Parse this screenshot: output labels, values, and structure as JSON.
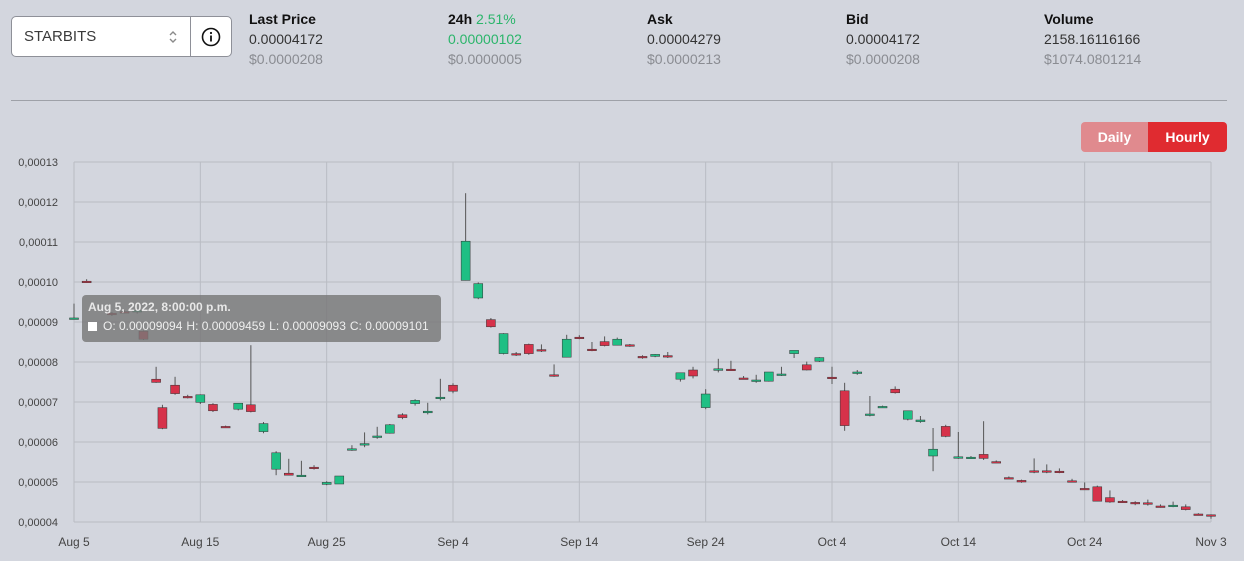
{
  "market_select": {
    "value": "STARBITS"
  },
  "stats": [
    {
      "label": "Last Price",
      "pct": "",
      "value": "0.00004172",
      "usd": "$0.0000208",
      "green": false
    },
    {
      "label": "24h",
      "pct": "2.51%",
      "value": "0.00000102",
      "usd": "$0.0000005",
      "green": true
    },
    {
      "label": "Ask",
      "pct": "",
      "value": "0.00004279",
      "usd": "$0.0000213",
      "green": false
    },
    {
      "label": "Bid",
      "pct": "",
      "value": "0.00004172",
      "usd": "$0.0000208",
      "green": false
    },
    {
      "label": "Volume",
      "pct": "",
      "value": "2158.16116166",
      "usd": "$1074.0801214",
      "green": false
    }
  ],
  "toggle": {
    "daily": "Daily",
    "hourly": "Hourly",
    "active": "hourly"
  },
  "colors": {
    "up": "#1fbf84",
    "down": "#d6324a",
    "wick": "#555",
    "grid": "#b9bcc3"
  },
  "tooltip": {
    "title": "Aug 5, 2022, 8:00:00 p.m.",
    "o": "O: 0.00009094",
    "h": "H: 0.00009459",
    "l": "L: 0.00009093",
    "c": "C: 0.00009101"
  },
  "chart_data": {
    "type": "candlestick",
    "ylim": [
      4e-05,
      0.00013
    ],
    "y_ticks": [
      "0,00013",
      "0,00012",
      "0,00011",
      "0,00010",
      "0,00009",
      "0,00008",
      "0,00007",
      "0,00006",
      "0,00005",
      "0,00004"
    ],
    "x_ticks": [
      "Aug 5",
      "Aug 15",
      "Aug 25",
      "Sep 4",
      "Sep 14",
      "Sep 24",
      "Oct 4",
      "Oct 14",
      "Oct 24",
      "Nov 3"
    ],
    "x_range_days": [
      0,
      90
    ],
    "candles": [
      {
        "d": 0,
        "o": 9.094e-05,
        "h": 9.459e-05,
        "l": 9.093e-05,
        "c": 9.101e-05
      },
      {
        "d": 1,
        "o": 0.0001002,
        "h": 0.0001007,
        "l": 9.98e-05,
        "c": 0.0001001
      },
      {
        "d": 3,
        "o": 9.22e-05,
        "h": 9.25e-05,
        "l": 9.15e-05,
        "c": 9.18e-05
      },
      {
        "d": 4,
        "o": 9.26e-05,
        "h": 9.29e-05,
        "l": 9.22e-05,
        "c": 9.23e-05
      },
      {
        "d": 5,
        "o": 9.25e-05,
        "h": 9.3e-05,
        "l": 9.21e-05,
        "c": 9.29e-05
      },
      {
        "d": 5.5,
        "o": 8.77e-05,
        "h": 8.79e-05,
        "l": 8.55e-05,
        "c": 8.57e-05
      },
      {
        "d": 6.5,
        "o": 7.57e-05,
        "h": 7.88e-05,
        "l": 7.48e-05,
        "c": 7.49e-05
      },
      {
        "d": 7,
        "o": 6.86e-05,
        "h": 6.93e-05,
        "l": 6.32e-05,
        "c": 6.34e-05
      },
      {
        "d": 8,
        "o": 7.42e-05,
        "h": 7.63e-05,
        "l": 7.18e-05,
        "c": 7.21e-05
      },
      {
        "d": 9,
        "o": 7.14e-05,
        "h": 7.18e-05,
        "l": 7.09e-05,
        "c": 7.12e-05
      },
      {
        "d": 10,
        "o": 6.99e-05,
        "h": 7.19e-05,
        "l": 6.95e-05,
        "c": 7.18e-05
      },
      {
        "d": 11,
        "o": 6.94e-05,
        "h": 6.97e-05,
        "l": 6.75e-05,
        "c": 6.78e-05
      },
      {
        "d": 12,
        "o": 6.39e-05,
        "h": 6.41e-05,
        "l": 6.36e-05,
        "c": 6.38e-05
      },
      {
        "d": 13,
        "o": 6.82e-05,
        "h": 6.97e-05,
        "l": 6.79e-05,
        "c": 6.97e-05
      },
      {
        "d": 14,
        "o": 6.93e-05,
        "h": 8.42e-05,
        "l": 6.74e-05,
        "c": 6.76e-05
      },
      {
        "d": 15,
        "o": 6.26e-05,
        "h": 6.5e-05,
        "l": 6.22e-05,
        "c": 6.46e-05
      },
      {
        "d": 16,
        "o": 5.32e-05,
        "h": 5.77e-05,
        "l": 5.17e-05,
        "c": 5.73e-05
      },
      {
        "d": 17,
        "o": 5.22e-05,
        "h": 5.58e-05,
        "l": 5.17e-05,
        "c": 5.17e-05
      },
      {
        "d": 18,
        "o": 5.17e-05,
        "h": 5.53e-05,
        "l": 5.14e-05,
        "c": 5.17e-05
      },
      {
        "d": 19,
        "o": 5.37e-05,
        "h": 5.42e-05,
        "l": 5.31e-05,
        "c": 5.35e-05
      },
      {
        "d": 20,
        "o": 4.94e-05,
        "h": 5.02e-05,
        "l": 4.92e-05,
        "c": 4.99e-05
      },
      {
        "d": 21,
        "o": 4.95e-05,
        "h": 5.15e-05,
        "l": 4.95e-05,
        "c": 5.15e-05
      },
      {
        "d": 22,
        "o": 5.81e-05,
        "h": 5.92e-05,
        "l": 5.78e-05,
        "c": 5.83e-05
      },
      {
        "d": 23,
        "o": 5.93e-05,
        "h": 6.24e-05,
        "l": 5.87e-05,
        "c": 5.96e-05
      },
      {
        "d": 24,
        "o": 6.12e-05,
        "h": 6.38e-05,
        "l": 6.08e-05,
        "c": 6.15e-05
      },
      {
        "d": 25,
        "o": 6.22e-05,
        "h": 6.45e-05,
        "l": 6.21e-05,
        "c": 6.43e-05
      },
      {
        "d": 26,
        "o": 6.68e-05,
        "h": 6.72e-05,
        "l": 6.57e-05,
        "c": 6.61e-05
      },
      {
        "d": 27,
        "o": 6.96e-05,
        "h": 7.07e-05,
        "l": 6.91e-05,
        "c": 7.04e-05
      },
      {
        "d": 28,
        "o": 6.73e-05,
        "h": 6.98e-05,
        "l": 6.69e-05,
        "c": 6.77e-05
      },
      {
        "d": 29,
        "o": 7.11e-05,
        "h": 7.58e-05,
        "l": 7.04e-05,
        "c": 7.12e-05
      },
      {
        "d": 30,
        "o": 7.42e-05,
        "h": 7.47e-05,
        "l": 7.22e-05,
        "c": 7.27e-05
      },
      {
        "d": 31,
        "o": 0.0001004,
        "h": 0.0001222,
        "l": 0.0001004,
        "c": 0.0001102
      },
      {
        "d": 32,
        "o": 9.6e-05,
        "h": 9.99e-05,
        "l": 9.57e-05,
        "c": 9.96e-05
      },
      {
        "d": 33,
        "o": 9.06e-05,
        "h": 9.1e-05,
        "l": 8.86e-05,
        "c": 8.88e-05
      },
      {
        "d": 34,
        "o": 8.21e-05,
        "h": 8.72e-05,
        "l": 8.19e-05,
        "c": 8.71e-05
      },
      {
        "d": 35,
        "o": 8.21e-05,
        "h": 8.25e-05,
        "l": 8.15e-05,
        "c": 8.18e-05
      },
      {
        "d": 36,
        "o": 8.44e-05,
        "h": 8.46e-05,
        "l": 8.18e-05,
        "c": 8.21e-05
      },
      {
        "d": 37,
        "o": 8.31e-05,
        "h": 8.44e-05,
        "l": 8.25e-05,
        "c": 8.28e-05
      },
      {
        "d": 38,
        "o": 7.68e-05,
        "h": 7.94e-05,
        "l": 7.63e-05,
        "c": 7.66e-05
      },
      {
        "d": 39,
        "o": 8.12e-05,
        "h": 8.68e-05,
        "l": 8.12e-05,
        "c": 8.57e-05
      },
      {
        "d": 40,
        "o": 8.62e-05,
        "h": 8.67e-05,
        "l": 8.57e-05,
        "c": 8.6e-05
      },
      {
        "d": 41,
        "o": 8.32e-05,
        "h": 8.5e-05,
        "l": 8.27e-05,
        "c": 8.31e-05
      },
      {
        "d": 42,
        "o": 8.51e-05,
        "h": 8.64e-05,
        "l": 8.39e-05,
        "c": 8.41e-05
      },
      {
        "d": 43,
        "o": 8.42e-05,
        "h": 8.61e-05,
        "l": 8.42e-05,
        "c": 8.57e-05
      },
      {
        "d": 44,
        "o": 8.43e-05,
        "h": 8.45e-05,
        "l": 8.38e-05,
        "c": 8.41e-05
      },
      {
        "d": 45,
        "o": 8.14e-05,
        "h": 8.17e-05,
        "l": 8.08e-05,
        "c": 8.11e-05
      },
      {
        "d": 46,
        "o": 8.14e-05,
        "h": 8.2e-05,
        "l": 8.12e-05,
        "c": 8.19e-05
      },
      {
        "d": 47,
        "o": 8.16e-05,
        "h": 8.25e-05,
        "l": 8.1e-05,
        "c": 8.14e-05
      },
      {
        "d": 48,
        "o": 7.57e-05,
        "h": 7.7e-05,
        "l": 7.51e-05,
        "c": 7.73e-05
      },
      {
        "d": 49,
        "o": 7.8e-05,
        "h": 7.88e-05,
        "l": 7.59e-05,
        "c": 7.65e-05
      },
      {
        "d": 50,
        "o": 6.86e-05,
        "h": 7.32e-05,
        "l": 6.82e-05,
        "c": 7.2e-05
      },
      {
        "d": 51,
        "o": 7.79e-05,
        "h": 8.08e-05,
        "l": 7.74e-05,
        "c": 7.83e-05
      },
      {
        "d": 52,
        "o": 7.82e-05,
        "h": 8.03e-05,
        "l": 7.78e-05,
        "c": 7.79e-05
      },
      {
        "d": 53,
        "o": 7.6e-05,
        "h": 7.65e-05,
        "l": 7.57e-05,
        "c": 7.59e-05
      },
      {
        "d": 54,
        "o": 7.52e-05,
        "h": 7.68e-05,
        "l": 7.48e-05,
        "c": 7.55e-05
      },
      {
        "d": 55,
        "o": 7.52e-05,
        "h": 7.75e-05,
        "l": 7.51e-05,
        "c": 7.75e-05
      },
      {
        "d": 56,
        "o": 7.68e-05,
        "h": 7.88e-05,
        "l": 7.65e-05,
        "c": 7.7e-05
      },
      {
        "d": 57,
        "o": 8.21e-05,
        "h": 8.27e-05,
        "l": 8.1e-05,
        "c": 8.29e-05
      },
      {
        "d": 58,
        "o": 7.93e-05,
        "h": 8.01e-05,
        "l": 7.79e-05,
        "c": 7.8e-05
      },
      {
        "d": 59,
        "o": 8.02e-05,
        "h": 8.12e-05,
        "l": 8e-05,
        "c": 8.11e-05
      },
      {
        "d": 60,
        "o": 7.62e-05,
        "h": 7.88e-05,
        "l": 7.45e-05,
        "c": 7.59e-05
      },
      {
        "d": 61,
        "o": 7.28e-05,
        "h": 7.48e-05,
        "l": 6.28e-05,
        "c": 6.41e-05
      },
      {
        "d": 62,
        "o": 7.72e-05,
        "h": 7.8e-05,
        "l": 7.68e-05,
        "c": 7.75e-05
      },
      {
        "d": 63,
        "o": 6.68e-05,
        "h": 7.15e-05,
        "l": 6.64e-05,
        "c": 6.7e-05
      },
      {
        "d": 64,
        "o": 6.88e-05,
        "h": 6.91e-05,
        "l": 6.85e-05,
        "c": 6.89e-05
      },
      {
        "d": 65,
        "o": 7.32e-05,
        "h": 7.39e-05,
        "l": 7.21e-05,
        "c": 7.23e-05
      },
      {
        "d": 66,
        "o": 6.57e-05,
        "h": 6.78e-05,
        "l": 6.54e-05,
        "c": 6.78e-05
      },
      {
        "d": 67,
        "o": 6.51e-05,
        "h": 6.65e-05,
        "l": 6.48e-05,
        "c": 6.55e-05
      },
      {
        "d": 68,
        "o": 5.65e-05,
        "h": 6.35e-05,
        "l": 5.27e-05,
        "c": 5.82e-05
      },
      {
        "d": 69,
        "o": 6.39e-05,
        "h": 6.43e-05,
        "l": 6.12e-05,
        "c": 6.14e-05
      },
      {
        "d": 70,
        "o": 5.62e-05,
        "h": 6.25e-05,
        "l": 5.58e-05,
        "c": 5.63e-05
      },
      {
        "d": 71,
        "o": 5.61e-05,
        "h": 5.65e-05,
        "l": 5.58e-05,
        "c": 5.62e-05
      },
      {
        "d": 72,
        "o": 5.69e-05,
        "h": 6.52e-05,
        "l": 5.55e-05,
        "c": 5.59e-05
      },
      {
        "d": 73,
        "o": 5.51e-05,
        "h": 5.54e-05,
        "l": 5.48e-05,
        "c": 5.5e-05
      },
      {
        "d": 74,
        "o": 5.11e-05,
        "h": 5.14e-05,
        "l": 5.08e-05,
        "c": 5.1e-05
      },
      {
        "d": 75,
        "o": 5.04e-05,
        "h": 5.06e-05,
        "l": 4.98e-05,
        "c": 5e-05
      },
      {
        "d": 76,
        "o": 5.28e-05,
        "h": 5.59e-05,
        "l": 5.22e-05,
        "c": 5.27e-05
      },
      {
        "d": 77,
        "o": 5.28e-05,
        "h": 5.44e-05,
        "l": 5.22e-05,
        "c": 5.27e-05
      },
      {
        "d": 78,
        "o": 5.27e-05,
        "h": 5.34e-05,
        "l": 5.22e-05,
        "c": 5.25e-05
      },
      {
        "d": 79,
        "o": 5.03e-05,
        "h": 5.08e-05,
        "l": 5e-05,
        "c": 5.02e-05
      },
      {
        "d": 80,
        "o": 4.84e-05,
        "h": 4.99e-05,
        "l": 4.8e-05,
        "c": 4.82e-05
      },
      {
        "d": 81,
        "o": 4.88e-05,
        "h": 4.91e-05,
        "l": 4.52e-05,
        "c": 4.52e-05
      },
      {
        "d": 82,
        "o": 4.61e-05,
        "h": 4.79e-05,
        "l": 4.48e-05,
        "c": 4.5e-05
      },
      {
        "d": 83,
        "o": 4.52e-05,
        "h": 4.55e-05,
        "l": 4.48e-05,
        "c": 4.5e-05
      },
      {
        "d": 84,
        "o": 4.49e-05,
        "h": 4.52e-05,
        "l": 4.42e-05,
        "c": 4.47e-05
      },
      {
        "d": 85,
        "o": 4.48e-05,
        "h": 4.56e-05,
        "l": 4.41e-05,
        "c": 4.47e-05
      },
      {
        "d": 86,
        "o": 4.4e-05,
        "h": 4.44e-05,
        "l": 4.36e-05,
        "c": 4.39e-05
      },
      {
        "d": 87,
        "o": 4.41e-05,
        "h": 4.51e-05,
        "l": 4.37e-05,
        "c": 4.42e-05
      },
      {
        "d": 88,
        "o": 4.38e-05,
        "h": 4.44e-05,
        "l": 4.29e-05,
        "c": 4.31e-05
      },
      {
        "d": 89,
        "o": 4.2e-05,
        "h": 4.22e-05,
        "l": 4.18e-05,
        "c": 4.19e-05
      },
      {
        "d": 90,
        "o": 4.18e-05,
        "h": 4.19e-05,
        "l": 4.08e-05,
        "c": 4.17e-05
      }
    ]
  }
}
